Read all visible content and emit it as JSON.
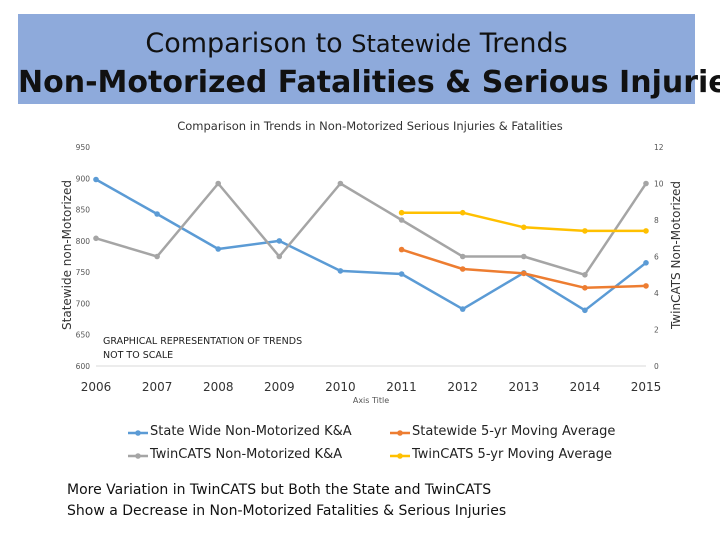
{
  "banner": {
    "title_part1": "Comparison to ",
    "title_part2": "Statewide",
    "title_part3": " Trends",
    "subtitle": "Non-Motorized Fatalities & Serious Injuries"
  },
  "chart_data": {
    "type": "line",
    "title": "Comparison in Trends in Non-Motorized Serious Injuries & Fatalities",
    "xlabel": "Axis Title",
    "ylabel_left": "Statewide non-Motorized",
    "ylabel_right": "TwinCATS Non-Motorized",
    "categories": [
      "2006",
      "2007",
      "2008",
      "2009",
      "2010",
      "2011",
      "2012",
      "2013",
      "2014",
      "2015"
    ],
    "ylim_left": [
      600,
      950
    ],
    "yticks_left": [
      "600",
      "650",
      "700",
      "750",
      "800",
      "850",
      "900",
      "950"
    ],
    "ylim_right": [
      0,
      12
    ],
    "yticks_right": [
      "0",
      "2",
      "4",
      "6",
      "8",
      "10",
      "12"
    ],
    "annotation": "GRAPHICAL REPRESENTATION OF TRENDS\nNOT TO SCALE",
    "series": [
      {
        "name": "State Wide Non-Motorized K&A",
        "axis": "left",
        "color": "#5b9bd5",
        "values": [
          898,
          843,
          787,
          800,
          752,
          747,
          691,
          749,
          689,
          765
        ]
      },
      {
        "name": "Statewide 5-yr Moving Average",
        "axis": "left",
        "color": "#ed7d31",
        "values": [
          null,
          null,
          null,
          null,
          null,
          786,
          755,
          748,
          725,
          728
        ]
      },
      {
        "name": "TwinCATS Non-Motorized K&A",
        "axis": "right",
        "color": "#a5a5a5",
        "values": [
          7,
          6,
          10,
          6,
          10,
          8,
          6,
          6,
          5,
          10
        ]
      },
      {
        "name": "TwinCATS 5-yr Moving Average",
        "axis": "right",
        "color": "#ffc000",
        "values": [
          null,
          null,
          null,
          null,
          null,
          8.4,
          8.4,
          7.6,
          7.4,
          7.4
        ]
      }
    ]
  },
  "conclusion": {
    "line1": "More Variation in TwinCATS but Both the State and TwinCATS",
    "line2": "Show a Decrease in Non-Motorized Fatalities & Serious Injuries"
  }
}
